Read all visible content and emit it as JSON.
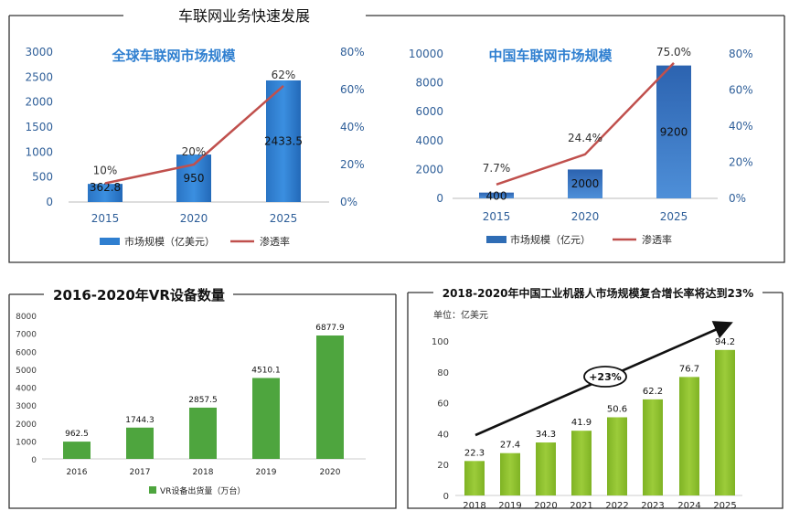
{
  "page": {
    "main_title": "车联网业务快速发展"
  },
  "chart_data": [
    {
      "type": "bar",
      "title": "全球车联网市场规模",
      "categories": [
        "2015",
        "2020",
        "2025"
      ],
      "series": [
        {
          "name": "市场规模（亿美元）",
          "type": "bar",
          "axis": "left",
          "values": [
            362.8,
            950,
            2433.5
          ],
          "value_labels": [
            "362.8",
            "950",
            "2433.5"
          ]
        },
        {
          "name": "渗透率",
          "type": "line",
          "axis": "right",
          "values": [
            10,
            20,
            62
          ],
          "value_labels": [
            "10%",
            "20%",
            "62%"
          ]
        }
      ],
      "ylim": [
        0,
        3000
      ],
      "yticks": [
        "0",
        "500",
        "1000",
        "1500",
        "2000",
        "2500",
        "3000"
      ],
      "y2lim": [
        0,
        80
      ],
      "y2ticks": [
        "0%",
        "20%",
        "40%",
        "60%",
        "80%"
      ],
      "colors": {
        "bar": "#2f7fd0",
        "line": "#c0504d"
      }
    },
    {
      "type": "bar",
      "title": "中国车联网市场规模",
      "categories": [
        "2015",
        "2020",
        "2025"
      ],
      "series": [
        {
          "name": "市场规模（亿元）",
          "type": "bar",
          "axis": "left",
          "values": [
            400,
            2000,
            9200
          ],
          "value_labels": [
            "400",
            "2000",
            "9200"
          ]
        },
        {
          "name": "渗透率",
          "type": "line",
          "axis": "right",
          "values": [
            7.7,
            24.4,
            75.0
          ],
          "value_labels": [
            "7.7%",
            "24.4%",
            "75.0%"
          ]
        }
      ],
      "ylim": [
        0,
        10000
      ],
      "yticks": [
        "0",
        "2000",
        "4000",
        "6000",
        "8000",
        "10000"
      ],
      "y2lim": [
        0,
        80
      ],
      "y2ticks": [
        "0%",
        "20%",
        "40%",
        "60%",
        "80%"
      ],
      "colors": {
        "bar": "#2f6db5",
        "line": "#c0504d"
      }
    },
    {
      "type": "bar",
      "title": "2016-2020年VR设备数量",
      "categories": [
        "2016",
        "2017",
        "2018",
        "2019",
        "2020"
      ],
      "series": [
        {
          "name": "VR设备出货量（万台）",
          "values": [
            962.5,
            1744.3,
            2857.5,
            4510.1,
            6877.9
          ],
          "value_labels": [
            "962.5",
            "1744.3",
            "2857.5",
            "4510.1",
            "6877.9"
          ]
        }
      ],
      "ylim": [
        0,
        8000
      ],
      "yticks": [
        "0",
        "1000",
        "2000",
        "3000",
        "4000",
        "5000",
        "6000",
        "7000",
        "8000"
      ],
      "colors": {
        "bar": "#4ea53e"
      }
    },
    {
      "type": "bar",
      "title": "2018-2020年中国工业机器人市场规模复合增长率将达到23%",
      "unit_label": "单位：亿美元",
      "categories": [
        "2018",
        "2019",
        "2020",
        "2021",
        "2022",
        "2023",
        "2024",
        "2025"
      ],
      "series": [
        {
          "values": [
            22.3,
            27.4,
            34.3,
            41.9,
            50.6,
            62.2,
            76.7,
            94.2
          ],
          "value_labels": [
            "22.3",
            "27.4",
            "34.3",
            "41.9",
            "50.6",
            "62.2",
            "76.7",
            "94.2"
          ]
        }
      ],
      "ylim": [
        0,
        100
      ],
      "yticks": [
        "0",
        "20",
        "40",
        "60",
        "80",
        "100"
      ],
      "annotation": "+23%",
      "colors": {
        "bar": "#8dbf2d"
      }
    }
  ]
}
